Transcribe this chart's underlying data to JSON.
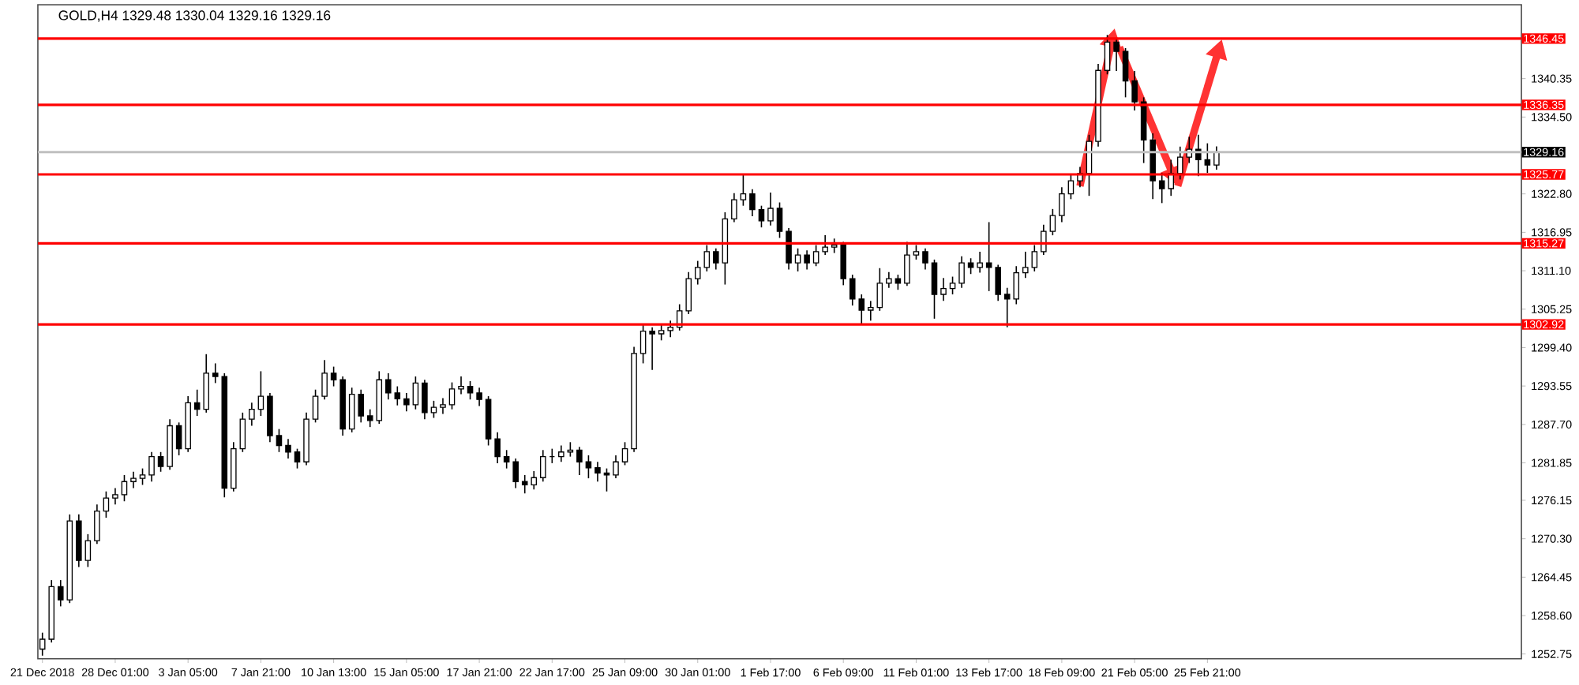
{
  "chart_data": {
    "type": "candlestick",
    "title": "GOLD,H4 1329.48 1330.04 1329.16 1329.16",
    "categories": [
      "21 Dec 2018",
      null,
      null,
      null,
      null,
      null,
      null,
      null,
      "28 Dec 01:00",
      null,
      null,
      null,
      null,
      null,
      null,
      null,
      "3 Jan 05:00",
      null,
      null,
      null,
      null,
      null,
      null,
      null,
      "7 Jan 21:00",
      null,
      null,
      null,
      null,
      null,
      null,
      null,
      "10 Jan 13:00",
      null,
      null,
      null,
      null,
      null,
      null,
      null,
      "15 Jan 05:00",
      null,
      null,
      null,
      null,
      null,
      null,
      null,
      "17 Jan 21:00",
      null,
      null,
      null,
      null,
      null,
      null,
      null,
      "22 Jan 17:00",
      null,
      null,
      null,
      null,
      null,
      null,
      null,
      "25 Jan 09:00",
      null,
      null,
      null,
      null,
      null,
      null,
      null,
      "30 Jan 01:00",
      null,
      null,
      null,
      null,
      null,
      null,
      null,
      "1 Feb 17:00",
      null,
      null,
      null,
      null,
      null,
      null,
      null,
      "6 Feb 09:00",
      null,
      null,
      null,
      null,
      null,
      null,
      null,
      "11 Feb 01:00",
      null,
      null,
      null,
      null,
      null,
      null,
      null,
      "13 Feb 17:00",
      null,
      null,
      null,
      null,
      null,
      null,
      null,
      "18 Feb 09:00",
      null,
      null,
      null,
      null,
      null,
      null,
      null,
      "21 Feb 05:00",
      null,
      null,
      null,
      null,
      null,
      null,
      null,
      "25 Feb 21:00",
      null,
      null,
      null,
      null,
      null,
      null,
      null,
      null,
      null,
      null,
      null,
      null,
      null,
      null,
      null,
      null,
      null,
      null,
      null,
      null,
      null,
      null,
      null,
      null,
      null,
      null,
      null,
      null,
      null,
      null,
      null,
      null,
      null,
      null
    ],
    "ohlc": [
      [
        1253.5,
        1256,
        1252.5,
        1255
      ],
      [
        1255,
        1264,
        1254.5,
        1263
      ],
      [
        1263,
        1264,
        1260,
        1261
      ],
      [
        1261,
        1274,
        1260.5,
        1273
      ],
      [
        1273,
        1274,
        1266,
        1267
      ],
      [
        1267,
        1271,
        1266,
        1270
      ],
      [
        1270,
        1275.5,
        1269.5,
        1274.5
      ],
      [
        1274.5,
        1277.5,
        1273.5,
        1276.5
      ],
      [
        1276.5,
        1278,
        1275.5,
        1277
      ],
      [
        1277,
        1280,
        1276,
        1279
      ],
      [
        1279,
        1280.5,
        1278,
        1279.5
      ],
      [
        1279.5,
        1281,
        1278.5,
        1280
      ],
      [
        1280,
        1283.5,
        1279,
        1282.8
      ],
      [
        1282.8,
        1283.5,
        1280.5,
        1281.3
      ],
      [
        1281.3,
        1288.5,
        1280.8,
        1287.5
      ],
      [
        1287.5,
        1288,
        1283,
        1284
      ],
      [
        1284,
        1292,
        1283.5,
        1291
      ],
      [
        1291,
        1293,
        1289,
        1290
      ],
      [
        1290,
        1298.4,
        1289.5,
        1295.5
      ],
      [
        1295.5,
        1297,
        1294,
        1295
      ],
      [
        1295,
        1295.5,
        1276.6,
        1278
      ],
      [
        1278,
        1285,
        1277.5,
        1284
      ],
      [
        1284,
        1289.5,
        1283.5,
        1288.5
      ],
      [
        1288.5,
        1291,
        1287.5,
        1290
      ],
      [
        1290,
        1295.8,
        1289,
        1292
      ],
      [
        1292,
        1292.5,
        1285,
        1286
      ],
      [
        1286,
        1287,
        1283.5,
        1284.5
      ],
      [
        1284.5,
        1285.5,
        1282.5,
        1283.5
      ],
      [
        1283.5,
        1284,
        1281,
        1282
      ],
      [
        1282,
        1289.5,
        1281.5,
        1288.5
      ],
      [
        1288.5,
        1293,
        1288,
        1292
      ],
      [
        1292,
        1297.5,
        1291.5,
        1295.5
      ],
      [
        1295.5,
        1296.5,
        1293.5,
        1294.5
      ],
      [
        1294.5,
        1295,
        1286,
        1287
      ],
      [
        1287,
        1293.3,
        1286.5,
        1292.3
      ],
      [
        1292.3,
        1293,
        1288,
        1289
      ],
      [
        1289,
        1290,
        1287.3,
        1288.3
      ],
      [
        1288.3,
        1295.8,
        1287.8,
        1294.5
      ],
      [
        1294.5,
        1295.5,
        1291.5,
        1292.5
      ],
      [
        1292.5,
        1293.5,
        1290.6,
        1291.6
      ],
      [
        1291.6,
        1292.5,
        1289.7,
        1290.7
      ],
      [
        1290.7,
        1295,
        1290,
        1294
      ],
      [
        1294,
        1294.5,
        1288.5,
        1289.5
      ],
      [
        1289.5,
        1291.3,
        1288.7,
        1290.3
      ],
      [
        1290.3,
        1291.7,
        1289.3,
        1290.7
      ],
      [
        1290.7,
        1294.1,
        1290,
        1293.1
      ],
      [
        1293.1,
        1295,
        1292.3,
        1293.5
      ],
      [
        1293.5,
        1294.3,
        1291.5,
        1292.5
      ],
      [
        1292.5,
        1293.3,
        1290.5,
        1291.5
      ],
      [
        1291.5,
        1292,
        1284.5,
        1285.5
      ],
      [
        1285.5,
        1286.5,
        1281.8,
        1282.8
      ],
      [
        1282.8,
        1283.8,
        1281,
        1282
      ],
      [
        1282,
        1282.5,
        1278,
        1279
      ],
      [
        1279,
        1280,
        1277.2,
        1278.5
      ],
      [
        1278.5,
        1280.6,
        1277.8,
        1279.6
      ],
      [
        1279.6,
        1283.8,
        1279,
        1282.8
      ],
      [
        1282.8,
        1284,
        1281.8,
        1282.8
      ],
      [
        1282.8,
        1284.5,
        1282,
        1283.5
      ],
      [
        1283.5,
        1285,
        1282.8,
        1283.8
      ],
      [
        1283.8,
        1284.3,
        1280,
        1282
      ],
      [
        1282,
        1283,
        1279.5,
        1281.1
      ],
      [
        1281.1,
        1282,
        1279,
        1280.3
      ],
      [
        1280.3,
        1281,
        1277.5,
        1280
      ],
      [
        1280,
        1283,
        1279.5,
        1282
      ],
      [
        1282,
        1285,
        1281.5,
        1284
      ],
      [
        1284,
        1299.5,
        1283.5,
        1298.5
      ],
      [
        1298.5,
        1302.9,
        1297,
        1301.9
      ],
      [
        1301.9,
        1302.5,
        1296,
        1301.5
      ],
      [
        1301.5,
        1303,
        1300.5,
        1302
      ],
      [
        1302,
        1303.5,
        1301,
        1302.5
      ],
      [
        1302.5,
        1306,
        1302,
        1305
      ],
      [
        1305,
        1310.9,
        1304.5,
        1309.9
      ],
      [
        1309.9,
        1312.6,
        1309,
        1311.6
      ],
      [
        1311.6,
        1315,
        1311,
        1314
      ],
      [
        1314,
        1314.5,
        1311.3,
        1312.3
      ],
      [
        1312.3,
        1320,
        1309,
        1319
      ],
      [
        1319,
        1322.9,
        1318.5,
        1321.9
      ],
      [
        1321.9,
        1325.7,
        1321,
        1322.8
      ],
      [
        1322.8,
        1323.5,
        1319.4,
        1320.4
      ],
      [
        1320.4,
        1321,
        1317.7,
        1318.7
      ],
      [
        1318.7,
        1323,
        1318,
        1320.6
      ],
      [
        1320.6,
        1321.5,
        1316.1,
        1317.1
      ],
      [
        1317.1,
        1317.6,
        1311.3,
        1312.3
      ],
      [
        1312.3,
        1314.5,
        1311,
        1313.5
      ],
      [
        1313.5,
        1314.2,
        1311.3,
        1312.3
      ],
      [
        1312.3,
        1315,
        1311.8,
        1314
      ],
      [
        1314,
        1316.5,
        1313.5,
        1314.7
      ],
      [
        1314.7,
        1316,
        1313.8,
        1315
      ],
      [
        1315,
        1315.5,
        1308.9,
        1309.9
      ],
      [
        1309.9,
        1310.5,
        1305.8,
        1306.8
      ],
      [
        1306.8,
        1307.5,
        1302.9,
        1305.1
      ],
      [
        1305.1,
        1306.5,
        1303.5,
        1305.5
      ],
      [
        1305.5,
        1311.5,
        1305,
        1309.2
      ],
      [
        1309.2,
        1310.9,
        1308.5,
        1309.9
      ],
      [
        1309.9,
        1310.5,
        1308.2,
        1309.2
      ],
      [
        1309.2,
        1315.5,
        1308.8,
        1313.5
      ],
      [
        1313.5,
        1315,
        1312.8,
        1314
      ],
      [
        1314,
        1314.5,
        1311.3,
        1312.3
      ],
      [
        1312.3,
        1312.8,
        1303.8,
        1307.5
      ],
      [
        1307.5,
        1310,
        1306.5,
        1308.4
      ],
      [
        1308.4,
        1310.2,
        1307.5,
        1309.2
      ],
      [
        1309.2,
        1313.3,
        1308.5,
        1312.3
      ],
      [
        1312.3,
        1313,
        1310.6,
        1311.6
      ],
      [
        1311.6,
        1314,
        1310.8,
        1312.3
      ],
      [
        1312.3,
        1318.5,
        1308,
        1311.6
      ],
      [
        1311.6,
        1312,
        1306.5,
        1307.5
      ],
      [
        1307.5,
        1308.5,
        1302.5,
        1306.8
      ],
      [
        1306.8,
        1311.8,
        1306,
        1310.8
      ],
      [
        1310.8,
        1314,
        1310,
        1311.6
      ],
      [
        1311.6,
        1315,
        1311,
        1314
      ],
      [
        1314,
        1318.1,
        1313.5,
        1317.1
      ],
      [
        1317.1,
        1320.5,
        1316.5,
        1319.5
      ],
      [
        1319.5,
        1323.8,
        1318.5,
        1322.8
      ],
      [
        1322.8,
        1325.8,
        1322,
        1324.8
      ],
      [
        1324.8,
        1326.9,
        1323.8,
        1325.9
      ],
      [
        1325.9,
        1331.8,
        1322.5,
        1330.8
      ],
      [
        1330.8,
        1342.6,
        1330,
        1341.6
      ],
      [
        1341.6,
        1347,
        1341,
        1345.9
      ],
      [
        1345.9,
        1346.5,
        1341.5,
        1344.5
      ],
      [
        1344.5,
        1345,
        1337.5,
        1340
      ],
      [
        1340,
        1341.5,
        1335.5,
        1336.8
      ],
      [
        1336.8,
        1337.5,
        1327.5,
        1331
      ],
      [
        1331,
        1332,
        1322,
        1324.8
      ],
      [
        1324.8,
        1326,
        1321.4,
        1323.6
      ],
      [
        1323.6,
        1328,
        1322.5,
        1325.9
      ],
      [
        1325.9,
        1330,
        1325,
        1328.4
      ],
      [
        1328.4,
        1331.5,
        1327.5,
        1329.6
      ],
      [
        1329.6,
        1331.8,
        1325.5,
        1328
      ],
      [
        1328,
        1330.5,
        1326,
        1327.2
      ],
      [
        1327.2,
        1330.04,
        1326.5,
        1329.16
      ],
      null,
      null,
      null,
      null,
      null,
      null,
      null,
      null,
      null,
      null,
      null,
      null,
      null,
      null,
      null,
      null,
      null,
      null,
      null,
      null,
      null,
      null,
      null,
      null,
      null,
      null,
      null,
      null,
      null,
      null,
      null,
      null,
      null
    ],
    "ylim": [
      1252.03,
      1351.6
    ],
    "yticks": [
      {
        "value": 1252.75,
        "label": "1252.75"
      },
      {
        "value": 1258.6,
        "label": "1258.60"
      },
      {
        "value": 1264.45,
        "label": "1264.45"
      },
      {
        "value": 1270.3,
        "label": "1270.30"
      },
      {
        "value": 1276.15,
        "label": "1276.15"
      },
      {
        "value": 1281.85,
        "label": "1281.85"
      },
      {
        "value": 1287.7,
        "label": "1287.70"
      },
      {
        "value": 1293.55,
        "label": "1293.55"
      },
      {
        "value": 1299.4,
        "label": "1299.40"
      },
      {
        "value": 1305.25,
        "label": "1305.25"
      },
      {
        "value": 1311.1,
        "label": "1311.10"
      },
      {
        "value": 1316.95,
        "label": "1316.95"
      },
      {
        "value": 1322.8,
        "label": "1322.80"
      },
      {
        "value": 1334.5,
        "label": "1334.50"
      },
      {
        "value": 1340.35,
        "label": "1340.35"
      }
    ],
    "ref_lines": [
      {
        "axis": "y",
        "value": 1346.45,
        "label": "1346.45",
        "color": "#ff0000"
      },
      {
        "axis": "y",
        "value": 1336.35,
        "label": "1336.35",
        "color": "#ff0000"
      },
      {
        "axis": "y",
        "value": 1329.16,
        "label": "1329.16",
        "color": "#c0c0c0"
      },
      {
        "axis": "y",
        "value": 1325.77,
        "label": "1325.77",
        "color": "#ff0000"
      },
      {
        "axis": "y",
        "value": 1315.27,
        "label": "1315.27",
        "color": "#ff0000"
      },
      {
        "axis": "y",
        "value": 1302.92,
        "label": "1302.92",
        "color": "#ff0000"
      }
    ]
  }
}
